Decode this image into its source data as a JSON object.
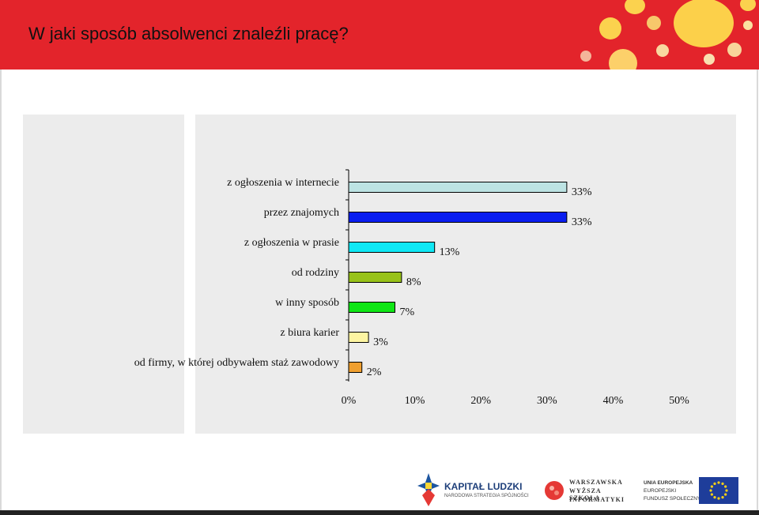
{
  "header": {
    "title": "W jaki sposób absolwenci znaleźli pracę?"
  },
  "chart_data": {
    "type": "bar",
    "orientation": "horizontal",
    "categories": [
      "z ogłoszenia w internecie",
      "przez znajomych",
      "z ogłoszenia w prasie",
      "od rodziny",
      "w inny sposób",
      "z biura karier",
      "od firmy, w której odbywałem staż zawodowy"
    ],
    "values": [
      33,
      33,
      13,
      8,
      7,
      3,
      2
    ],
    "value_labels": [
      "33%",
      "33%",
      "13%",
      "8%",
      "7%",
      "3%",
      "2%"
    ],
    "colors": [
      "#bde3e3",
      "#0a1ef0",
      "#10e8f5",
      "#98c21a",
      "#10e616",
      "#fdf5a2",
      "#f0a030"
    ],
    "xlim": [
      0,
      50
    ],
    "x_ticks": [
      "0%",
      "10%",
      "20%",
      "30%",
      "40%",
      "50%"
    ],
    "grid": false,
    "legend": "none"
  },
  "footer": {
    "logo1": {
      "title": "KAPITAŁ LUDZKI",
      "subtitle": "NARODOWA STRATEGIA SPÓJNOŚCI"
    },
    "logo2": {
      "line1": "WARSZAWSKA",
      "line2": "WYŻSZA SZKOŁA",
      "line3": "INFORMATYKI"
    },
    "logo3": {
      "line1": "UNIA EUROPEJSKA",
      "line2": "EUROPEJSKI",
      "line3": "FUNDUSZ SPOŁECZNY"
    }
  }
}
